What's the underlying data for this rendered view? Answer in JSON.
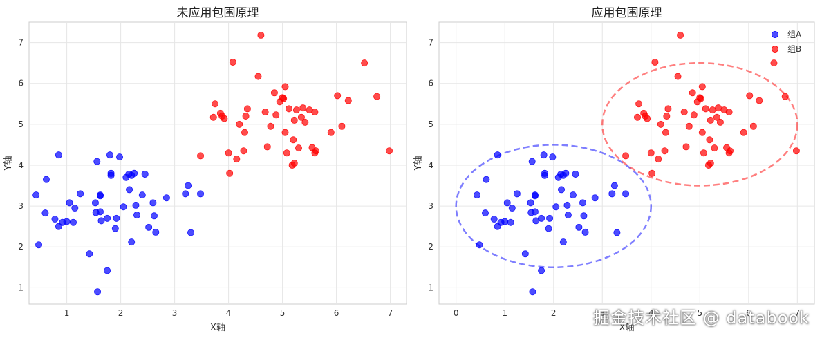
{
  "chart_data": [
    {
      "type": "scatter",
      "title": "未应用包围原理",
      "xlabel": "X轴",
      "ylabel": "Y轴",
      "xlim": [
        0.3,
        7.3
      ],
      "ylim": [
        0.6,
        7.5
      ],
      "xticks": [
        1,
        2,
        3,
        4,
        5,
        6,
        7
      ],
      "yticks": [
        1,
        2,
        3,
        4,
        5,
        6,
        7
      ],
      "grid": true,
      "legend": null,
      "series_ref": "shared"
    },
    {
      "type": "scatter",
      "title": "应用包围原理",
      "xlabel": "X轴",
      "ylabel": "Y轴",
      "xlim": [
        -0.35,
        7.35
      ],
      "ylim": [
        0.6,
        7.5
      ],
      "xticks": [
        0,
        1,
        2,
        3,
        4,
        5,
        6,
        7
      ],
      "yticks": [
        1,
        2,
        3,
        4,
        5,
        6,
        7
      ],
      "grid": true,
      "legend": "top-right",
      "series_ref": "shared",
      "ellipses": [
        {
          "series": "组A",
          "center": [
            2,
            3
          ],
          "half_width": 2,
          "half_height": 1.5,
          "style": "dashed"
        },
        {
          "series": "组B",
          "center": [
            5,
            5
          ],
          "half_width": 2,
          "half_height": 1.5,
          "style": "dashed"
        }
      ]
    }
  ],
  "series": [
    {
      "name": "组A",
      "color": "#0000ff",
      "points": [
        [
          0.43,
          3.27
        ],
        [
          0.48,
          2.05
        ],
        [
          0.6,
          2.83
        ],
        [
          0.62,
          3.65
        ],
        [
          0.78,
          2.68
        ],
        [
          0.85,
          4.25
        ],
        [
          0.85,
          2.5
        ],
        [
          0.92,
          2.6
        ],
        [
          1.0,
          2.62
        ],
        [
          1.05,
          3.08
        ],
        [
          1.12,
          2.6
        ],
        [
          1.15,
          2.95
        ],
        [
          1.25,
          3.3
        ],
        [
          1.42,
          1.83
        ],
        [
          1.53,
          3.08
        ],
        [
          1.54,
          2.84
        ],
        [
          1.56,
          4.09
        ],
        [
          1.57,
          0.9
        ],
        [
          1.62,
          3.27
        ],
        [
          1.62,
          3.25
        ],
        [
          1.62,
          2.86
        ],
        [
          1.64,
          2.64
        ],
        [
          1.75,
          2.7
        ],
        [
          1.75,
          1.42
        ],
        [
          1.8,
          4.25
        ],
        [
          1.82,
          3.8
        ],
        [
          1.82,
          3.75
        ],
        [
          1.9,
          2.45
        ],
        [
          1.92,
          2.7
        ],
        [
          1.98,
          4.2
        ],
        [
          2.05,
          2.98
        ],
        [
          2.1,
          3.7
        ],
        [
          2.15,
          3.78
        ],
        [
          2.16,
          3.4
        ],
        [
          2.2,
          3.75
        ],
        [
          2.2,
          2.12
        ],
        [
          2.25,
          3.8
        ],
        [
          2.28,
          3.02
        ],
        [
          2.3,
          2.78
        ],
        [
          2.4,
          3.27
        ],
        [
          2.45,
          3.78
        ],
        [
          2.52,
          2.48
        ],
        [
          2.6,
          3.08
        ],
        [
          2.62,
          2.76
        ],
        [
          2.65,
          2.36
        ],
        [
          2.85,
          3.2
        ],
        [
          3.2,
          3.3
        ],
        [
          3.25,
          3.5
        ],
        [
          3.3,
          2.35
        ],
        [
          3.48,
          3.3
        ]
      ]
    },
    {
      "name": "组B",
      "color": "#ff0000",
      "points": [
        [
          3.48,
          4.23
        ],
        [
          3.72,
          5.17
        ],
        [
          3.75,
          5.5
        ],
        [
          3.85,
          5.27
        ],
        [
          3.88,
          5.2
        ],
        [
          3.92,
          5.14
        ],
        [
          4.0,
          4.3
        ],
        [
          4.02,
          3.8
        ],
        [
          4.08,
          6.52
        ],
        [
          4.15,
          4.15
        ],
        [
          4.2,
          5.0
        ],
        [
          4.28,
          4.35
        ],
        [
          4.3,
          4.8
        ],
        [
          4.32,
          5.2
        ],
        [
          4.35,
          5.38
        ],
        [
          4.55,
          6.17
        ],
        [
          4.6,
          7.18
        ],
        [
          4.68,
          5.3
        ],
        [
          4.72,
          4.45
        ],
        [
          4.78,
          4.95
        ],
        [
          4.85,
          5.77
        ],
        [
          4.88,
          5.23
        ],
        [
          4.95,
          5.55
        ],
        [
          5.0,
          5.65
        ],
        [
          5.02,
          5.63
        ],
        [
          5.05,
          5.92
        ],
        [
          5.05,
          4.8
        ],
        [
          5.08,
          4.3
        ],
        [
          5.12,
          5.38
        ],
        [
          5.18,
          4.0
        ],
        [
          5.2,
          4.62
        ],
        [
          5.22,
          4.05
        ],
        [
          5.22,
          5.1
        ],
        [
          5.26,
          5.35
        ],
        [
          5.3,
          4.42
        ],
        [
          5.35,
          5.17
        ],
        [
          5.38,
          5.4
        ],
        [
          5.42,
          5.05
        ],
        [
          5.5,
          5.35
        ],
        [
          5.55,
          4.43
        ],
        [
          5.6,
          5.3
        ],
        [
          5.6,
          4.3
        ],
        [
          5.62,
          4.35
        ],
        [
          5.9,
          4.8
        ],
        [
          6.02,
          5.7
        ],
        [
          6.1,
          4.95
        ],
        [
          6.22,
          5.58
        ],
        [
          6.52,
          6.5
        ],
        [
          6.75,
          5.68
        ],
        [
          6.98,
          4.35
        ]
      ]
    }
  ],
  "watermark": "掘金技术社区 @ databook"
}
